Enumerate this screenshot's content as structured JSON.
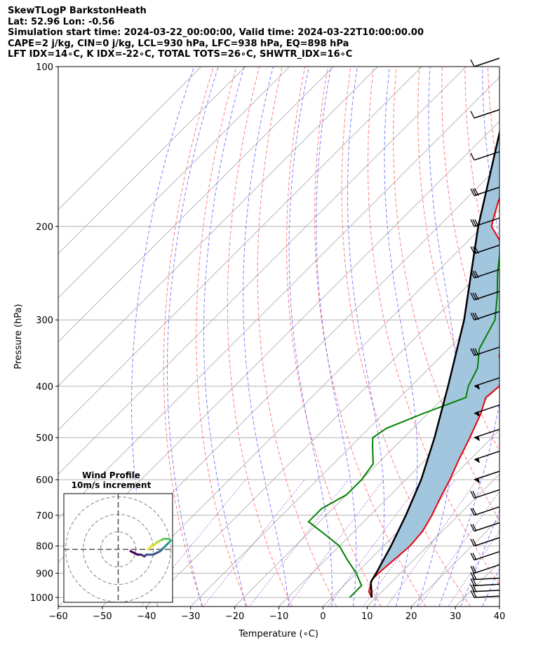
{
  "header": {
    "title": "SkewTLogP BarkstonHeath",
    "location": "Lat: 52.96   Lon: -0.56",
    "times": "Simulation start time: 2024-03-22_00:00:00, Valid time: 2024-03-22T10:00:00.00",
    "parcel_params": "CAPE=2 j/kg, CIN=0 j/kg, LCL=930 hPa, LFC=938 hPa, EQ=898 hPa",
    "indices": "LFT IDX=14∘C, K IDX=-22∘C, TOTAL TOTS=26∘C, SHWTR_IDX=16∘C"
  },
  "colors": {
    "temperature": "#e8000b",
    "dewpoint": "#008000",
    "parcel": "#000000",
    "cape_fill": "#a3c6df",
    "isotherm": "#b0b0b0",
    "dry_adiabat": "#ff7070",
    "moist_adiabat": "#6b6bff",
    "mixing_ratio": "#9b4fc7",
    "grid": "#b0b0b0",
    "hodograph_ring": "#808080"
  },
  "chart_data": [
    {
      "type": "line",
      "name": "skew-t log-p sounding",
      "xlabel": "Temperature (∘C)",
      "ylabel": "Pressure (hPa)",
      "xlim": [
        -60,
        40
      ],
      "ylim": [
        1040,
        100
      ],
      "y_scale": "log (inverted)",
      "skew": "45 degrees",
      "grid": true,
      "xticks": [
        "−60",
        "−50",
        "−40",
        "−30",
        "−20",
        "−10",
        "0",
        "10",
        "20",
        "30",
        "40"
      ],
      "yticks": [
        "100",
        "200",
        "300",
        "400",
        "500",
        "600",
        "700",
        "800",
        "900",
        "1000"
      ],
      "series": [
        {
          "role": "temperature",
          "points": [
            [
              9,
              1000
            ],
            [
              7,
              975
            ],
            [
              5,
              925
            ],
            [
              5,
              900
            ],
            [
              5.5,
              850
            ],
            [
              6,
              800
            ],
            [
              5.5,
              750
            ],
            [
              4,
              700
            ],
            [
              2,
              650
            ],
            [
              0,
              600
            ],
            [
              -2.5,
              550
            ],
            [
              -5,
              500
            ],
            [
              -8,
              450
            ],
            [
              -10.5,
              420
            ],
            [
              -10,
              400
            ],
            [
              -12,
              380
            ],
            [
              -17,
              350
            ],
            [
              -22,
              300
            ],
            [
              -28,
              270
            ],
            [
              -31,
              250
            ],
            [
              -37,
              235
            ],
            [
              -42,
              215
            ],
            [
              -48,
              200
            ],
            [
              -50,
              190
            ],
            [
              -52,
              180
            ],
            [
              -55,
              165
            ],
            [
              -60,
              150
            ],
            [
              -61,
              140
            ],
            [
              -62,
              130
            ],
            [
              -63,
              120
            ],
            [
              -63,
              110
            ],
            [
              -64,
              100
            ]
          ]
        },
        {
          "role": "dewpoint",
          "points": [
            [
              4,
              1000
            ],
            [
              4,
              975
            ],
            [
              4,
              950
            ],
            [
              0,
              900
            ],
            [
              -5,
              850
            ],
            [
              -10,
              800
            ],
            [
              -16,
              760
            ],
            [
              -22.5,
              720
            ],
            [
              -22.5,
              680
            ],
            [
              -20,
              640
            ],
            [
              -20,
              600
            ],
            [
              -21,
              560
            ],
            [
              -25,
              520
            ],
            [
              -27,
              500
            ],
            [
              -26,
              480
            ],
            [
              -21,
              450
            ],
            [
              -15,
              420
            ],
            [
              -17,
              400
            ],
            [
              -19,
              370
            ],
            [
              -23,
              340
            ],
            [
              -26,
              300
            ],
            [
              -31,
              270
            ],
            [
              -36,
              245
            ],
            [
              -41,
              220
            ],
            [
              -43,
              210
            ],
            [
              -44,
              200
            ],
            [
              -44,
              190
            ],
            [
              -46,
              180
            ],
            [
              -46,
              170
            ],
            [
              -48,
              160
            ],
            [
              -51,
              150
            ],
            [
              -61,
              135
            ],
            [
              -63,
              125
            ],
            [
              -68,
              100
            ]
          ]
        },
        {
          "role": "parcel",
          "points": [
            [
              9,
              1000
            ],
            [
              5.3,
              935
            ],
            [
              4.5,
              900
            ],
            [
              1.7,
              800
            ],
            [
              -1.9,
              700
            ],
            [
              -6.5,
              600
            ],
            [
              -13,
              500
            ],
            [
              -21.6,
              400
            ],
            [
              -33,
              300
            ],
            [
              -51,
              200
            ],
            [
              -79,
              100
            ]
          ]
        }
      ],
      "wind_barbs_right_column": true
    },
    {
      "type": "scatter",
      "name": "hodograph",
      "title": "Wind Profile",
      "subtitle": "10m/s increment",
      "rings_mps": [
        10,
        20,
        30
      ],
      "colored_by": "height (viridis)",
      "points_uv": [
        [
          7,
          -1
        ],
        [
          9,
          -2
        ],
        [
          11,
          -3
        ],
        [
          13,
          -3
        ],
        [
          15,
          -4
        ],
        [
          16,
          -3
        ],
        [
          20,
          -3
        ],
        [
          22,
          -2
        ],
        [
          24,
          -1
        ],
        [
          25,
          0
        ],
        [
          26,
          1
        ],
        [
          27,
          2
        ],
        [
          28,
          3
        ],
        [
          29,
          4
        ],
        [
          30,
          5
        ],
        [
          29,
          6
        ],
        [
          28,
          6
        ],
        [
          26,
          6
        ],
        [
          24,
          5
        ],
        [
          22,
          4
        ],
        [
          21,
          3
        ],
        [
          20,
          2
        ],
        [
          19,
          2
        ],
        [
          18,
          1
        ],
        [
          17,
          0
        ]
      ]
    }
  ]
}
